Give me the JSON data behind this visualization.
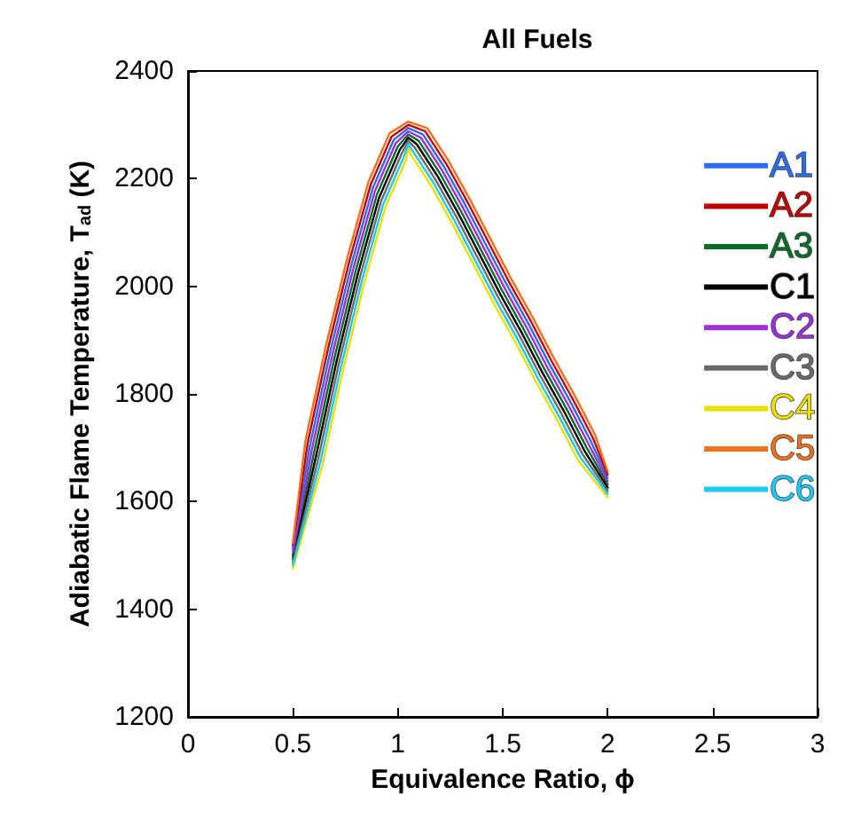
{
  "chart_data": {
    "type": "line",
    "title": "All Fuels",
    "xlabel": "Equivalence Ratio, ϕ",
    "ylabel": "Adiabatic Flame Temperature, T$_{ad}$ (K)",
    "series": [
      {
        "name": "A1",
        "color": "#2b6cf0",
        "x": [
          0.5,
          0.58,
          0.68,
          0.78,
          0.88,
          0.98,
          1.05,
          1.12,
          1.22,
          1.32,
          1.42,
          1.52,
          1.62,
          1.72,
          1.82,
          1.92,
          2.0
        ],
        "values": [
          1512,
          1702,
          1882,
          2042,
          2182,
          2272,
          2294,
          2282,
          2222,
          2152,
          2077,
          2002,
          1932,
          1857,
          1787,
          1712,
          1644
        ]
      },
      {
        "name": "A2",
        "color": "#c00000",
        "x": [
          0.5,
          0.57,
          0.67,
          0.77,
          0.87,
          0.97,
          1.05,
          1.13,
          1.23,
          1.33,
          1.43,
          1.53,
          1.63,
          1.73,
          1.83,
          1.93,
          2.0
        ],
        "values": [
          1518,
          1708,
          1888,
          2048,
          2188,
          2278,
          2300,
          2288,
          2228,
          2158,
          2083,
          2008,
          1938,
          1863,
          1793,
          1718,
          1650
        ]
      },
      {
        "name": "A3",
        "color": "#0b6b2a",
        "x": [
          0.5,
          0.6,
          0.7,
          0.8,
          0.9,
          1.0,
          1.05,
          1.1,
          1.2,
          1.3,
          1.4,
          1.5,
          1.6,
          1.7,
          1.8,
          1.9,
          2.0
        ],
        "values": [
          1500,
          1690,
          1870,
          2030,
          2170,
          2260,
          2282,
          2270,
          2210,
          2140,
          2065,
          1990,
          1920,
          1845,
          1775,
          1700,
          1632
        ]
      },
      {
        "name": "C1",
        "color": "#000000",
        "x": [
          0.5,
          0.61,
          0.71,
          0.81,
          0.91,
          1.01,
          1.05,
          1.09,
          1.19,
          1.29,
          1.39,
          1.49,
          1.59,
          1.69,
          1.79,
          1.89,
          2.0
        ],
        "values": [
          1494,
          1684,
          1864,
          2024,
          2164,
          2254,
          2276,
          2264,
          2204,
          2134,
          2059,
          1984,
          1914,
          1839,
          1769,
          1694,
          1626
        ]
      },
      {
        "name": "C2",
        "color": "#9b30d9",
        "x": [
          0.5,
          0.59,
          0.69,
          0.79,
          0.89,
          0.99,
          1.05,
          1.11,
          1.21,
          1.31,
          1.41,
          1.51,
          1.61,
          1.71,
          1.81,
          1.91,
          2.0
        ],
        "values": [
          1506,
          1696,
          1876,
          2036,
          2176,
          2266,
          2288,
          2276,
          2216,
          2146,
          2071,
          1996,
          1926,
          1851,
          1781,
          1706,
          1638
        ]
      },
      {
        "name": "C3",
        "color": "#6a6a6a",
        "x": [
          0.5,
          0.62,
          0.72,
          0.82,
          0.92,
          1.02,
          1.05,
          1.08,
          1.18,
          1.28,
          1.38,
          1.48,
          1.58,
          1.68,
          1.78,
          1.88,
          2.0
        ],
        "values": [
          1488,
          1678,
          1858,
          2018,
          2158,
          2248,
          2270,
          2258,
          2198,
          2128,
          2053,
          1978,
          1908,
          1833,
          1763,
          1688,
          1620
        ]
      },
      {
        "name": "C4",
        "color": "#e8e000",
        "x": [
          0.5,
          0.64,
          0.74,
          0.84,
          0.94,
          1.04,
          1.05,
          1.06,
          1.16,
          1.26,
          1.36,
          1.46,
          1.56,
          1.66,
          1.76,
          1.86,
          2.0
        ],
        "values": [
          1476,
          1666,
          1846,
          2006,
          2146,
          2236,
          2258,
          2246,
          2186,
          2116,
          2041,
          1966,
          1896,
          1821,
          1751,
          1676,
          1608
        ]
      },
      {
        "name": "C5",
        "color": "#f07020",
        "x": [
          0.5,
          0.56,
          0.66,
          0.76,
          0.86,
          0.96,
          1.05,
          1.14,
          1.24,
          1.34,
          1.44,
          1.54,
          1.64,
          1.74,
          1.84,
          1.94,
          2.0
        ],
        "values": [
          1524,
          1714,
          1894,
          2054,
          2194,
          2284,
          2306,
          2294,
          2234,
          2164,
          2089,
          2014,
          1944,
          1869,
          1799,
          1724,
          1656
        ]
      },
      {
        "name": "C6",
        "color": "#1ec8f5",
        "x": [
          0.5,
          0.63,
          0.73,
          0.83,
          0.93,
          1.03,
          1.05,
          1.07,
          1.17,
          1.27,
          1.37,
          1.47,
          1.57,
          1.67,
          1.77,
          1.87,
          2.0
        ],
        "values": [
          1482,
          1672,
          1852,
          2012,
          2152,
          2242,
          2264,
          2252,
          2192,
          2122,
          2047,
          1972,
          1902,
          1827,
          1757,
          1682,
          1614
        ]
      }
    ],
    "xlim": [
      0,
      3
    ],
    "xticks": [
      0,
      0.5,
      1,
      1.5,
      2,
      2.5,
      3
    ],
    "ylim": [
      1200,
      2400
    ],
    "yticks": [
      1200,
      1400,
      1600,
      1800,
      2000,
      2200,
      2400
    ],
    "grid": false,
    "legend": "top right",
    "marker": "none",
    "line_style": "solid"
  }
}
